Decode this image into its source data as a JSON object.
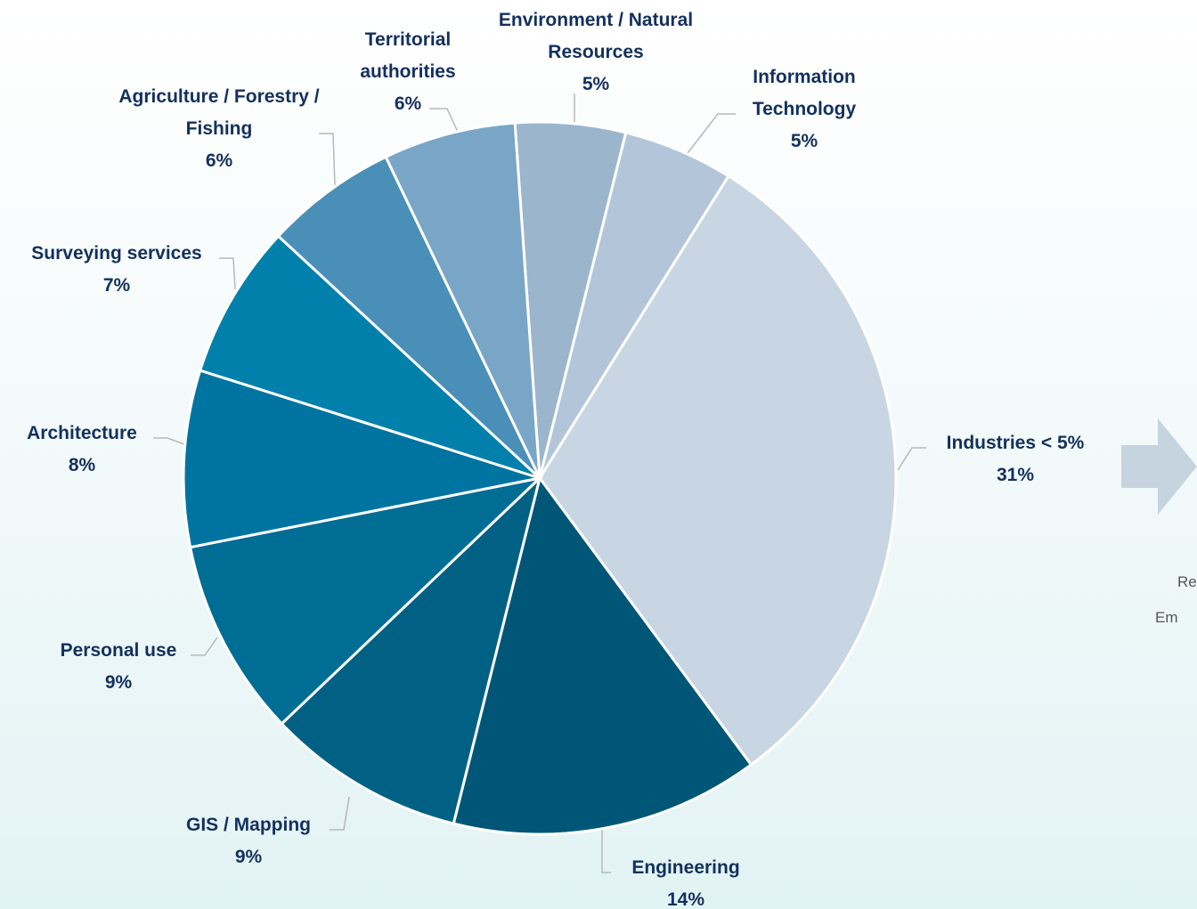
{
  "chart_data": {
    "type": "pie",
    "categories": [
      "Environment / Natural Resources",
      "Information Technology",
      "Industries < 5%",
      "Engineering",
      "GIS / Mapping",
      "Personal use",
      "Architecture",
      "Surveying services",
      "Agriculture / Forestry / Fishing",
      "Territorial authorities"
    ],
    "values": [
      5,
      5,
      31,
      14,
      9,
      9,
      8,
      7,
      6,
      6
    ],
    "value_labels": [
      "5%",
      "5%",
      "31%",
      "14%",
      "9%",
      "9%",
      "8%",
      "7%",
      "6%",
      "6%"
    ],
    "colors": [
      "#9bb5cc",
      "#b3c6d9",
      "#c8d5e2",
      "#005677",
      "#006185",
      "#006d95",
      "#0074a0",
      "#0080aa",
      "#4a8fb8",
      "#79a6c6"
    ],
    "side_texts": [
      "Re",
      "Em"
    ]
  }
}
